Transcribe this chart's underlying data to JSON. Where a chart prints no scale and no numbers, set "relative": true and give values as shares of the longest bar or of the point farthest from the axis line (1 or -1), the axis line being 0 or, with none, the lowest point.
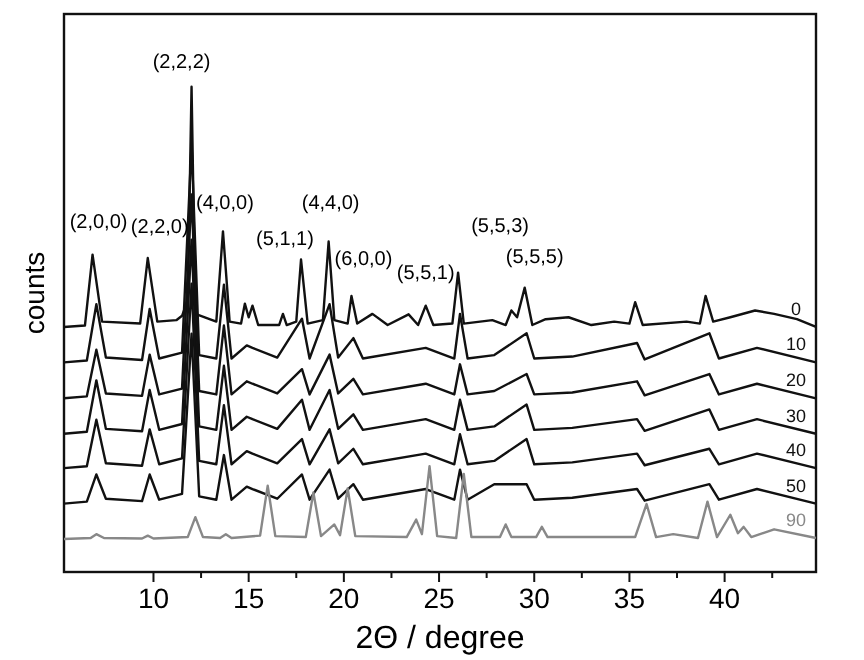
{
  "chart_data": {
    "type": "line",
    "relative": true,
    "xlabel": "2Θ / degree",
    "ylabel": "counts",
    "xlim": [
      5.3,
      44.8
    ],
    "xticks": [
      10,
      {
        "value": 12.5,
        "label": null
      },
      15,
      {
        "value": 17.5,
        "label": null
      },
      20,
      {
        "value": 22.5,
        "label": null
      },
      25,
      {
        "value": 27.5,
        "label": null
      },
      30,
      {
        "value": 32.5,
        "label": null
      },
      35,
      {
        "value": 37.5,
        "label": null
      },
      40,
      {
        "value": 42.5,
        "label": null
      }
    ],
    "tick_labels": "x",
    "marker": "none",
    "line_style": "solid",
    "grid": false,
    "legend": false,
    "x": [
      5.3,
      6.5,
      7.0,
      7.5,
      9.4,
      9.8,
      10.3,
      11.5,
      12.0,
      12.4,
      13.3,
      13.7,
      14.1,
      14.9,
      15.2,
      16.5,
      17.8,
      18.2,
      19.25,
      19.7,
      20.5,
      21.0,
      24.3,
      25.8,
      26.1,
      26.5,
      27.9,
      29.6,
      30.0,
      32.0,
      35.4,
      35.8,
      39.2,
      39.7,
      41.7,
      44.8
    ],
    "series": [
      {
        "name": "0",
        "color": "#111111",
        "x": [
          5.3,
          6.4,
          6.8,
          7.3,
          9.3,
          9.7,
          10.2,
          11.2,
          11.5,
          11.8,
          12.0,
          12.2,
          13.3,
          13.65,
          14.0,
          14.6,
          14.8,
          15.0,
          15.2,
          15.5,
          16.6,
          16.8,
          17.0,
          17.5,
          17.75,
          18.1,
          18.9,
          19.2,
          19.5,
          20.2,
          20.4,
          20.7,
          21.5,
          22.3,
          23.4,
          23.9,
          24.3,
          24.7,
          25.7,
          26.0,
          26.3,
          27.8,
          28.5,
          28.8,
          29.1,
          29.5,
          29.9,
          30.6,
          31.8,
          33.0,
          34.2,
          35.0,
          35.3,
          35.7,
          38.0,
          38.7,
          39.0,
          39.4,
          40.3,
          41.6,
          42.6,
          43.8,
          44.8
        ],
        "values": [
          0.505,
          0.508,
          0.654,
          0.516,
          0.512,
          0.647,
          0.516,
          0.519,
          0.528,
          0.56,
          1.0,
          0.532,
          0.516,
          0.702,
          0.516,
          0.512,
          0.553,
          0.525,
          0.549,
          0.509,
          0.509,
          0.532,
          0.509,
          0.516,
          0.644,
          0.512,
          0.519,
          0.681,
          0.519,
          0.512,
          0.569,
          0.512,
          0.532,
          0.509,
          0.531,
          0.509,
          0.549,
          0.509,
          0.512,
          0.617,
          0.512,
          0.519,
          0.509,
          0.539,
          0.525,
          0.586,
          0.509,
          0.521,
          0.525,
          0.509,
          0.516,
          0.512,
          0.556,
          0.509,
          0.516,
          0.512,
          0.569,
          0.516,
          0.525,
          0.539,
          0.532,
          0.521,
          0.505
        ]
      },
      {
        "name": "10",
        "color": "#111111",
        "values": [
          0.432,
          0.436,
          0.552,
          0.442,
          0.437,
          0.542,
          0.44,
          0.452,
          0.882,
          0.447,
          0.44,
          0.592,
          0.44,
          0.467,
          0.462,
          0.442,
          0.522,
          0.44,
          0.552,
          0.442,
          0.482,
          0.44,
          0.462,
          0.44,
          0.532,
          0.44,
          0.447,
          0.492,
          0.44,
          0.444,
          0.472,
          0.438,
          0.492,
          0.44,
          0.462,
          0.432
        ]
      },
      {
        "name": "20",
        "color": "#111111",
        "values": [
          0.358,
          0.362,
          0.458,
          0.368,
          0.363,
          0.448,
          0.366,
          0.378,
          0.778,
          0.373,
          0.366,
          0.508,
          0.366,
          0.393,
          0.388,
          0.368,
          0.418,
          0.366,
          0.448,
          0.368,
          0.398,
          0.366,
          0.388,
          0.366,
          0.428,
          0.366,
          0.373,
          0.408,
          0.366,
          0.37,
          0.393,
          0.364,
          0.408,
          0.366,
          0.388,
          0.358
        ]
      },
      {
        "name": "30",
        "color": "#111111",
        "values": [
          0.285,
          0.289,
          0.395,
          0.295,
          0.29,
          0.375,
          0.293,
          0.305,
          0.685,
          0.3,
          0.293,
          0.425,
          0.293,
          0.32,
          0.315,
          0.295,
          0.355,
          0.293,
          0.375,
          0.295,
          0.325,
          0.293,
          0.315,
          0.293,
          0.355,
          0.293,
          0.3,
          0.345,
          0.293,
          0.297,
          0.315,
          0.291,
          0.335,
          0.293,
          0.315,
          0.285
        ]
      },
      {
        "name": "40",
        "color": "#111111",
        "values": [
          0.214,
          0.218,
          0.314,
          0.224,
          0.219,
          0.294,
          0.222,
          0.234,
          0.594,
          0.229,
          0.222,
          0.344,
          0.222,
          0.249,
          0.244,
          0.224,
          0.274,
          0.222,
          0.294,
          0.224,
          0.254,
          0.222,
          0.244,
          0.222,
          0.284,
          0.222,
          0.229,
          0.274,
          0.222,
          0.226,
          0.244,
          0.22,
          0.254,
          0.222,
          0.244,
          0.214
        ]
      },
      {
        "name": "50",
        "color": "#111111",
        "values": [
          0.141,
          0.145,
          0.201,
          0.151,
          0.146,
          0.201,
          0.149,
          0.161,
          0.491,
          0.156,
          0.149,
          0.241,
          0.149,
          0.176,
          0.171,
          0.151,
          0.201,
          0.149,
          0.211,
          0.151,
          0.181,
          0.149,
          0.171,
          0.149,
          0.211,
          0.149,
          0.181,
          0.181,
          0.149,
          0.153,
          0.171,
          0.147,
          0.181,
          0.149,
          0.171,
          0.141
        ]
      },
      {
        "name": "90",
        "color": "#888888",
        "x": [
          5.3,
          6.7,
          7.0,
          7.4,
          9.4,
          9.7,
          10.0,
          11.8,
          12.2,
          12.6,
          13.5,
          13.8,
          14.1,
          15.6,
          16.0,
          16.4,
          18.0,
          18.4,
          18.8,
          19.5,
          19.8,
          20.2,
          20.6,
          23.3,
          23.8,
          24.1,
          24.5,
          24.9,
          25.9,
          26.3,
          26.7,
          28.2,
          28.5,
          28.8,
          30.1,
          30.4,
          30.7,
          35.3,
          35.9,
          36.4,
          37.3,
          38.6,
          39.1,
          39.6,
          40.3,
          40.7,
          41.0,
          41.4,
          42.6,
          44.8
        ],
        "values": [
          0.068,
          0.07,
          0.078,
          0.07,
          0.069,
          0.075,
          0.069,
          0.072,
          0.113,
          0.072,
          0.07,
          0.078,
          0.07,
          0.075,
          0.178,
          0.074,
          0.072,
          0.164,
          0.074,
          0.098,
          0.076,
          0.172,
          0.074,
          0.072,
          0.108,
          0.078,
          0.218,
          0.074,
          0.07,
          0.202,
          0.072,
          0.072,
          0.098,
          0.072,
          0.072,
          0.093,
          0.072,
          0.072,
          0.14,
          0.072,
          0.078,
          0.07,
          0.145,
          0.072,
          0.118,
          0.08,
          0.093,
          0.072,
          0.088,
          0.07
        ]
      }
    ],
    "annotations": [
      {
        "text": "(2,0,0)",
        "x": 6.8,
        "y": 0.654
      },
      {
        "text": "(2,2,0)",
        "x": 9.7,
        "y": 0.647
      },
      {
        "text": "(2,2,2)",
        "x": 12.0,
        "y": 1.0
      },
      {
        "text": "(4,0,0)",
        "x": 13.65,
        "y": 0.702
      },
      {
        "text": "(5,1,1)",
        "x": 17.75,
        "y": 0.644
      },
      {
        "text": "(4,4,0)",
        "x": 19.2,
        "y": 0.681
      },
      {
        "text": "(6,0,0)",
        "x": 20.4,
        "y": 0.569
      },
      {
        "text": "(5,5,1)",
        "x": 24.3,
        "y": 0.549
      },
      {
        "text": "(5,5,3)",
        "x": 26.0,
        "y": 0.617
      },
      {
        "text": "(5,5,5)",
        "x": 29.5,
        "y": 0.586
      }
    ]
  }
}
